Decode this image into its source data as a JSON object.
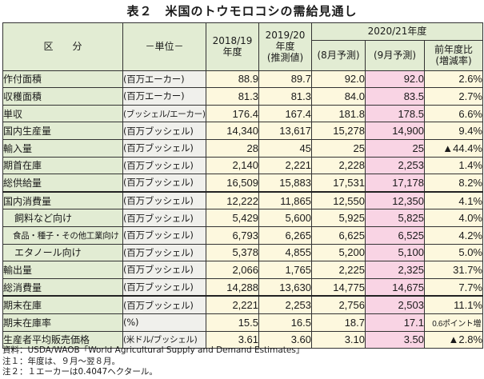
{
  "title": "表２　米国のトウモロコシの需給見通し",
  "headers": {
    "item": "区　　分",
    "unit": "－単位－",
    "y2018": "2018/19\n年度",
    "y2019": "2019/20\n年度\n(推測値)",
    "y2020": "2020/21年度",
    "aug": "(8月予測)",
    "sep": "(9月予測)",
    "change": "前年度比\n(増減率)"
  },
  "rows": [
    {
      "item": "作付面積",
      "unit": "(百万エーカー)",
      "v2018": "88.9",
      "v2019": "89.7",
      "aug": "92.0",
      "sep": "92.0",
      "change": "2.6%"
    },
    {
      "item": "収穫面積",
      "unit": "(百万エーカー)",
      "v2018": "81.3",
      "v2019": "81.3",
      "aug": "84.0",
      "sep": "83.5",
      "change": "2.7%"
    },
    {
      "item": "単収",
      "unit": "(ブッシェル/エーカー)",
      "v2018": "176.4",
      "v2019": "167.4",
      "aug": "181.8",
      "sep": "178.5",
      "change": "6.6%"
    },
    {
      "item": "国内生産量",
      "unit": "(百万ブッシェル)",
      "v2018": "14,340",
      "v2019": "13,617",
      "aug": "15,278",
      "sep": "14,900",
      "change": "9.4%"
    },
    {
      "item": "輸入量",
      "unit": "(百万ブッシェル)",
      "v2018": "28",
      "v2019": "45",
      "aug": "25",
      "sep": "25",
      "change": "▲44.4%"
    },
    {
      "item": "期首在庫",
      "unit": "(百万ブッシェル)",
      "v2018": "2,140",
      "v2019": "2,221",
      "aug": "2,228",
      "sep": "2,253",
      "change": "1.4%"
    },
    {
      "item": "総供給量",
      "unit": "(百万ブッシェル)",
      "v2018": "16,509",
      "v2019": "15,883",
      "aug": "17,531",
      "sep": "17,178",
      "change": "8.2%"
    },
    {
      "item": "国内消費量",
      "unit": "(百万ブッシェル)",
      "v2018": "12,222",
      "v2019": "11,865",
      "aug": "12,550",
      "sep": "12,350",
      "change": "4.1%"
    },
    {
      "item": "飼料など向け",
      "unit": "(百万ブッシェル)",
      "v2018": "5,429",
      "v2019": "5,600",
      "aug": "5,925",
      "sep": "5,825",
      "change": "4.0%"
    },
    {
      "item": "食品・種子・その他工業向け",
      "unit": "(百万ブッシェル)",
      "v2018": "6,793",
      "v2019": "6,265",
      "aug": "6,625",
      "sep": "6,525",
      "change": "4.2%"
    },
    {
      "item": "エタノール向け",
      "unit": "(百万ブッシェル)",
      "v2018": "5,378",
      "v2019": "4,855",
      "aug": "5,200",
      "sep": "5,100",
      "change": "5.0%"
    },
    {
      "item": "輸出量",
      "unit": "(百万ブッシェル)",
      "v2018": "2,066",
      "v2019": "1,765",
      "aug": "2,225",
      "sep": "2,325",
      "change": "31.7%"
    },
    {
      "item": "総消費量",
      "unit": "(百万ブッシェル)",
      "v2018": "14,288",
      "v2019": "13,630",
      "aug": "14,775",
      "sep": "14,675",
      "change": "7.7%"
    },
    {
      "item": "期末在庫",
      "unit": "(百万ブッシェル)",
      "v2018": "2,221",
      "v2019": "2,253",
      "aug": "2,756",
      "sep": "2,503",
      "change": "11.1%"
    },
    {
      "item": "期末在庫率",
      "unit": "(%)",
      "v2018": "15.5",
      "v2019": "16.5",
      "aug": "18.7",
      "sep": "17.1",
      "change": "0.6ポイント増"
    },
    {
      "item": "生産者平均販売価格",
      "unit": "(米ドル/ブッシェル)",
      "v2018": "3.61",
      "v2019": "3.60",
      "aug": "3.10",
      "sep": "3.50",
      "change": "▲2.8%"
    }
  ],
  "notes": [
    "資料：USDA/WAOB「World Agricultural Supply and Demand Estimates」",
    "注１：年度は、９月～翌８月。",
    "注２：１エーカーは0.4047ヘクタール。"
  ]
}
